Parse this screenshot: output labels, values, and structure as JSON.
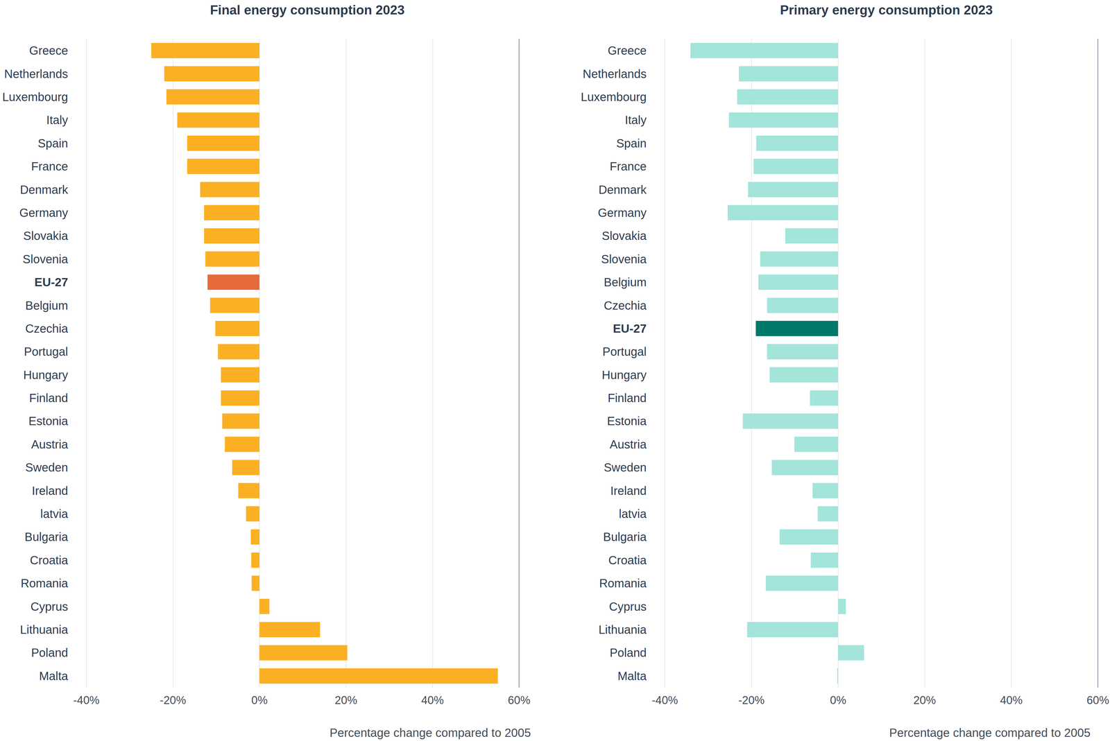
{
  "chart_data": [
    {
      "type": "bar",
      "orientation": "horizontal",
      "title": "Final energy consumption 2023",
      "x_label": "Percentage change compared to 2005",
      "categories": [
        "Greece",
        "Netherlands",
        "Luxembourg",
        "Italy",
        "Spain",
        "France",
        "Denmark",
        "Germany",
        "Slovakia",
        "Slovenia",
        "EU-27",
        "Belgium",
        "Czechia",
        "Portugal",
        "Hungary",
        "Finland",
        "Estonia",
        "Austria",
        "Sweden",
        "Ireland",
        "latvia",
        "Bulgaria",
        "Croatia",
        "Romania",
        "Cyprus",
        "Lithuania",
        "Poland",
        "Malta"
      ],
      "values": [
        -25,
        -22,
        -21.5,
        -19,
        -16.7,
        -16.7,
        -13.7,
        -12.8,
        -12.8,
        -12.5,
        -12,
        -11.4,
        -10.2,
        -9.6,
        -8.9,
        -8.9,
        -8.6,
        -8,
        -6.3,
        -4.9,
        -3.1,
        -2,
        -1.9,
        -1.8,
        2.3,
        14,
        20.3,
        55.1
      ],
      "colors": [
        "#fbb024",
        "#fbb024",
        "#fbb024",
        "#fbb024",
        "#fbb024",
        "#fbb024",
        "#fbb024",
        "#fbb024",
        "#fbb024",
        "#fbb024",
        "#e66a3a",
        "#fbb024",
        "#fbb024",
        "#fbb024",
        "#fbb024",
        "#fbb024",
        "#fbb024",
        "#fbb024",
        "#fbb024",
        "#fbb024",
        "#fbb024",
        "#fbb024",
        "#fbb024",
        "#fbb024",
        "#fbb024",
        "#fbb024",
        "#fbb024",
        "#fbb024"
      ],
      "xlim": [
        -40,
        60
      ],
      "xticks": [
        {
          "value": -40,
          "label": "-40%"
        },
        {
          "value": -20,
          "label": "-20%"
        },
        {
          "value": 0,
          "label": "0%"
        },
        {
          "value": 20,
          "label": "20%"
        },
        {
          "value": 40,
          "label": "40%"
        },
        {
          "value": 60,
          "label": "60%"
        }
      ],
      "grid": true
    },
    {
      "type": "bar",
      "orientation": "horizontal",
      "title": "Primary energy consumption 2023",
      "x_label": "Percentage change compared to 2005",
      "categories": [
        "Greece",
        "Netherlands",
        "Luxembourg",
        "Italy",
        "Spain",
        "France",
        "Denmark",
        "Germany",
        "Slovakia",
        "Slovenia",
        "Belgium",
        "Czechia",
        "EU-27",
        "Portugal",
        "Hungary",
        "Finland",
        "Estonia",
        "Austria",
        "Sweden",
        "Ireland",
        "latvia",
        "Bulgaria",
        "Croatia",
        "Romania",
        "Cyprus",
        "Lithuania",
        "Poland",
        "Malta"
      ],
      "values": [
        -34.1,
        -22.9,
        -23.3,
        -25.2,
        -18.9,
        -19.5,
        -20.8,
        -25.5,
        -12.2,
        -18,
        -18.4,
        -16.4,
        -19,
        -16.4,
        -15.8,
        -6.5,
        -22,
        -10.1,
        -15.3,
        -5.9,
        -4.7,
        -13.5,
        -6.3,
        -16.7,
        1.8,
        -21,
        6,
        -0.2
      ],
      "colors": [
        "#a3e4db",
        "#a3e4db",
        "#a3e4db",
        "#a3e4db",
        "#a3e4db",
        "#a3e4db",
        "#a3e4db",
        "#a3e4db",
        "#a3e4db",
        "#a3e4db",
        "#a3e4db",
        "#a3e4db",
        "#00786a",
        "#a3e4db",
        "#a3e4db",
        "#a3e4db",
        "#a3e4db",
        "#a3e4db",
        "#a3e4db",
        "#a3e4db",
        "#a3e4db",
        "#a3e4db",
        "#a3e4db",
        "#a3e4db",
        "#a3e4db",
        "#a3e4db",
        "#a3e4db",
        "#a3e4db"
      ],
      "xlim": [
        -40,
        60
      ],
      "xticks": [
        {
          "value": -40,
          "label": "-40%"
        },
        {
          "value": -20,
          "label": "-20%"
        },
        {
          "value": 0,
          "label": "0%"
        },
        {
          "value": 20,
          "label": "20%"
        },
        {
          "value": 40,
          "label": "40%"
        },
        {
          "value": 60,
          "label": "60%"
        }
      ],
      "grid": true
    }
  ]
}
